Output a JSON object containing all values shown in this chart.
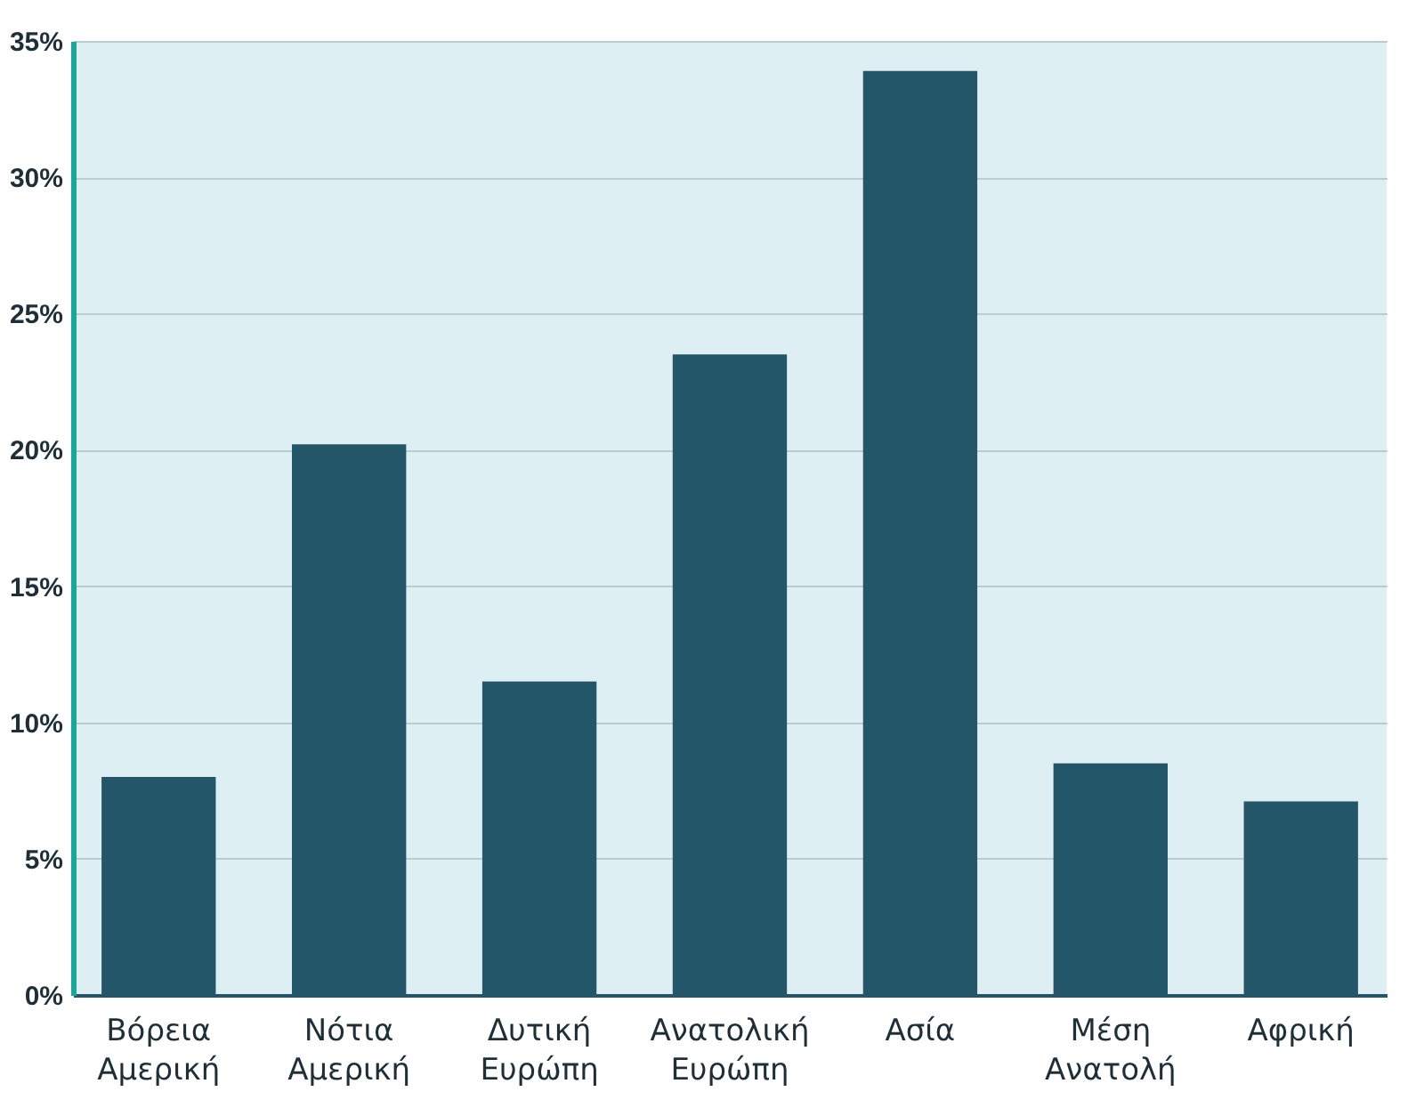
{
  "chart_data": {
    "type": "bar",
    "categories": [
      "Βόρεια Αμερική",
      "Νότια Αμερική",
      "Δυτική Ευρώπη",
      "Ανατολική Ευρώπη",
      "Ασία",
      "Μέση Ανατολή",
      "Αφρική"
    ],
    "values": [
      8.0,
      20.2,
      11.5,
      23.5,
      33.9,
      8.5,
      7.1
    ],
    "color": "#24566a",
    "ylim": [
      0,
      35
    ],
    "yticks": [
      {
        "value": 0,
        "label": "0%"
      },
      {
        "value": 5,
        "label": "5%"
      },
      {
        "value": 10,
        "label": "10%"
      },
      {
        "value": 15,
        "label": "15%"
      },
      {
        "value": 20,
        "label": "20%"
      },
      {
        "value": 25,
        "label": "25%"
      },
      {
        "value": 30,
        "label": "30%"
      },
      {
        "value": 35,
        "label": "35%"
      }
    ],
    "grid": "y"
  }
}
